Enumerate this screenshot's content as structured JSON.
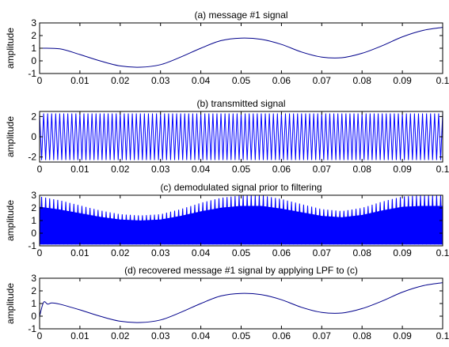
{
  "chart_data": [
    {
      "type": "line",
      "title": "(a) message #1 signal",
      "ylabel": "amplitude",
      "xlim": [
        0,
        0.1
      ],
      "ylim": [
        -1,
        3
      ],
      "xticks": [
        "0",
        "0.01",
        "0.02",
        "0.03",
        "0.04",
        "0.05",
        "0.06",
        "0.07",
        "0.08",
        "0.09",
        "0.1"
      ],
      "yticks": [
        "-1",
        "0",
        "1",
        "2",
        "3"
      ],
      "series": [
        {
          "color": "#00008b",
          "x": [
            0,
            0.005,
            0.01,
            0.015,
            0.02,
            0.025,
            0.03,
            0.035,
            0.04,
            0.045,
            0.05,
            0.055,
            0.06,
            0.065,
            0.07,
            0.075,
            0.08,
            0.085,
            0.09,
            0.095,
            0.1
          ],
          "y": [
            1.0,
            0.95,
            0.5,
            0.0,
            -0.4,
            -0.5,
            -0.3,
            0.3,
            1.0,
            1.6,
            1.8,
            1.7,
            1.3,
            0.7,
            0.3,
            0.25,
            0.6,
            1.2,
            1.9,
            2.4,
            2.65
          ]
        }
      ]
    },
    {
      "type": "line",
      "title": "(b) transmitted signal",
      "ylabel": "amplitude",
      "xlim": [
        0,
        0.1
      ],
      "ylim": [
        -2.5,
        2.5
      ],
      "xticks": [
        "0",
        "0.01",
        "0.02",
        "0.03",
        "0.04",
        "0.05",
        "0.06",
        "0.07",
        "0.08",
        "0.09",
        "0.1"
      ],
      "yticks": [
        "-2",
        "0",
        "2"
      ],
      "series": [
        {
          "color": "#0000ff",
          "waveform": "carrier",
          "carrier_cycles": 100,
          "peak": 2.3
        }
      ]
    },
    {
      "type": "line",
      "title": "(c) demodulated signal prior to filtering",
      "ylabel": "amplitude",
      "xlim": [
        0,
        0.1
      ],
      "ylim": [
        -1,
        3
      ],
      "xticks": [
        "0",
        "0.01",
        "0.02",
        "0.03",
        "0.04",
        "0.05",
        "0.06",
        "0.07",
        "0.08",
        "0.09",
        "0.1"
      ],
      "yticks": [
        "-1",
        "0",
        "1",
        "2",
        "3"
      ],
      "series": [
        {
          "color": "#0000ff",
          "waveform": "demodulated",
          "carrier_cycles": 100,
          "envelope_x": [
            0,
            0.005,
            0.01,
            0.015,
            0.02,
            0.025,
            0.03,
            0.035,
            0.04,
            0.045,
            0.05,
            0.055,
            0.06,
            0.065,
            0.07,
            0.075,
            0.08,
            0.085,
            0.09,
            0.095,
            0.1
          ],
          "envelope_y": [
            2.9,
            2.6,
            2.2,
            1.8,
            1.5,
            1.4,
            1.5,
            1.9,
            2.4,
            2.8,
            3.0,
            3.0,
            2.7,
            2.3,
            1.9,
            1.75,
            2.0,
            2.5,
            2.9,
            3.0,
            3.0
          ],
          "lower": -0.9
        }
      ]
    },
    {
      "type": "line",
      "title": "(d) recovered message #1 signal by applying LPF to (c)",
      "ylabel": "amplitude",
      "xlim": [
        0,
        0.1
      ],
      "ylim": [
        -1,
        3
      ],
      "xticks": [
        "0",
        "0.01",
        "0.02",
        "0.03",
        "0.04",
        "0.05",
        "0.06",
        "0.07",
        "0.08",
        "0.09",
        "0.1"
      ],
      "yticks": [
        "-1",
        "0",
        "1",
        "2",
        "3"
      ],
      "series": [
        {
          "color": "#00008b",
          "x": [
            0,
            0.001,
            0.002,
            0.003,
            0.005,
            0.01,
            0.015,
            0.02,
            0.025,
            0.03,
            0.035,
            0.04,
            0.045,
            0.05,
            0.055,
            0.06,
            0.065,
            0.07,
            0.075,
            0.08,
            0.085,
            0.09,
            0.095,
            0.1
          ],
          "y": [
            0,
            1.1,
            0.95,
            1.05,
            0.95,
            0.5,
            0.0,
            -0.4,
            -0.5,
            -0.3,
            0.3,
            1.0,
            1.6,
            1.8,
            1.7,
            1.3,
            0.7,
            0.3,
            0.25,
            0.6,
            1.2,
            1.9,
            2.4,
            2.65
          ]
        }
      ]
    }
  ]
}
